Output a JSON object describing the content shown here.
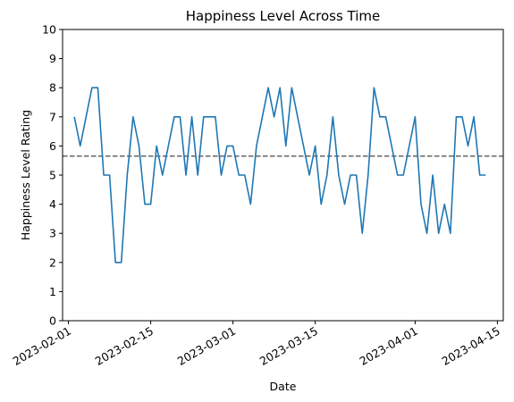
{
  "chart_data": {
    "type": "line",
    "title": "Happiness Level Across Time",
    "xlabel": "Date",
    "ylabel": "Happiness Level Rating",
    "xlim": [
      "2023-01-31",
      "2023-04-16"
    ],
    "ylim": [
      0,
      10
    ],
    "x_ticks": [
      "2023-02-01",
      "2023-02-15",
      "2023-03-01",
      "2023-03-15",
      "2023-04-01",
      "2023-04-15"
    ],
    "y_ticks": [
      0,
      1,
      2,
      3,
      4,
      5,
      6,
      7,
      8,
      9,
      10
    ],
    "grid": false,
    "legend": "none",
    "colors": {
      "series": "#1f77b4",
      "mean_line": "#666666"
    },
    "series": [
      {
        "x": [
          "2023-02-02",
          "2023-02-03",
          "2023-02-04",
          "2023-02-05",
          "2023-02-06",
          "2023-02-07",
          "2023-02-08",
          "2023-02-09",
          "2023-02-10",
          "2023-02-11",
          "2023-02-12",
          "2023-02-13",
          "2023-02-14",
          "2023-02-15",
          "2023-02-16",
          "2023-02-17",
          "2023-02-18",
          "2023-02-19",
          "2023-02-20",
          "2023-02-21",
          "2023-02-22",
          "2023-02-23",
          "2023-02-24",
          "2023-02-25",
          "2023-02-26",
          "2023-02-27",
          "2023-02-28",
          "2023-03-01",
          "2023-03-02",
          "2023-03-03",
          "2023-03-04",
          "2023-03-05",
          "2023-03-06",
          "2023-03-07",
          "2023-03-08",
          "2023-03-09",
          "2023-03-10",
          "2023-03-11",
          "2023-03-12",
          "2023-03-13",
          "2023-03-14",
          "2023-03-15",
          "2023-03-16",
          "2023-03-17",
          "2023-03-18",
          "2023-03-19",
          "2023-03-20",
          "2023-03-21",
          "2023-03-22",
          "2023-03-23",
          "2023-03-24",
          "2023-03-25",
          "2023-03-26",
          "2023-03-27",
          "2023-03-28",
          "2023-03-29",
          "2023-03-30",
          "2023-03-31",
          "2023-04-01",
          "2023-04-02",
          "2023-04-03",
          "2023-04-04",
          "2023-04-05",
          "2023-04-06",
          "2023-04-07",
          "2023-04-08",
          "2023-04-09",
          "2023-04-10",
          "2023-04-11",
          "2023-04-12",
          "2023-04-13"
        ],
        "y": [
          7,
          6,
          7,
          8,
          8,
          5,
          5,
          2,
          2,
          5,
          7,
          6,
          4,
          4,
          6,
          5,
          6,
          7,
          7,
          5,
          7,
          5,
          7,
          7,
          7,
          5,
          6,
          6,
          5,
          5,
          4,
          6,
          7,
          8,
          7,
          8,
          6,
          8,
          7,
          6,
          5,
          6,
          4,
          5,
          7,
          5,
          4,
          5,
          5,
          3,
          5,
          8,
          7,
          7,
          6,
          5,
          5,
          6,
          7,
          4,
          3,
          5,
          3,
          4,
          3,
          7,
          7,
          6,
          7,
          5,
          5
        ]
      }
    ],
    "reference_line": {
      "orientation": "horizontal",
      "y": 5.65,
      "style": "dashed"
    }
  }
}
